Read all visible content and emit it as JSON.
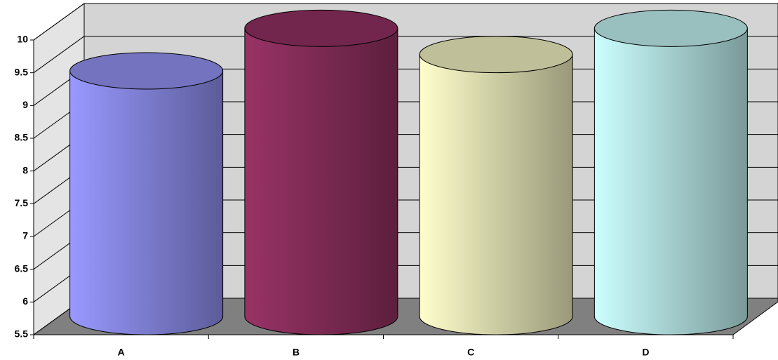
{
  "chart_data": {
    "type": "bar3d",
    "categories": [
      "A",
      "B",
      "C",
      "D"
    ],
    "values": [
      9.25,
      9.9,
      9.5,
      9.9
    ],
    "colors": [
      "#9999ff",
      "#993366",
      "#ffffcc",
      "#ccffff"
    ],
    "ylim": [
      5.5,
      10
    ],
    "yticks": [
      5.5,
      6,
      6.5,
      7,
      7.5,
      8,
      8.5,
      9,
      9.5,
      10
    ],
    "grid": true
  }
}
